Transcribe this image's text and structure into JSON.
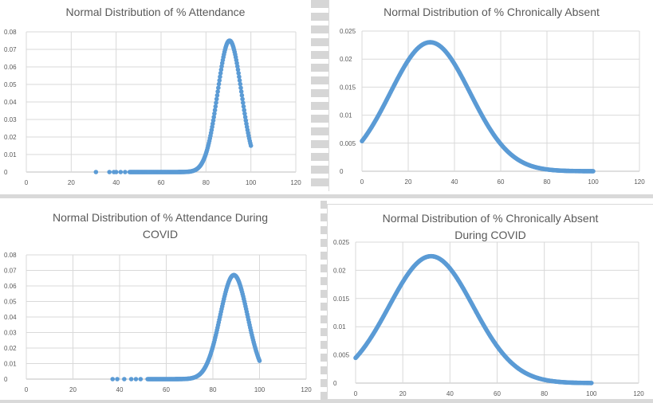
{
  "charts": [
    {
      "title_lines": [
        "Normal Distribution of % Attendance"
      ]
    },
    {
      "title_lines": [
        "Normal Distribution of % Chronically Absent"
      ]
    },
    {
      "title_lines": [
        "Normal Distribution of % Attendance During",
        "COVID"
      ]
    },
    {
      "title_lines": [
        "Normal Distribution of % Chronically Absent",
        "During COVID"
      ]
    }
  ],
  "colors": {
    "series": "#5b9bd5",
    "grid": "#d9d9d9",
    "text": "#595959"
  },
  "chart_data": [
    {
      "type": "scatter",
      "title": "Normal Distribution of % Attendance",
      "xlim": [
        0,
        120
      ],
      "ylim": [
        0,
        0.08
      ],
      "x_ticks": [
        "0",
        "20",
        "40",
        "60",
        "80",
        "100",
        "120"
      ],
      "y_ticks": [
        "0",
        "0.01",
        "0.02",
        "0.03",
        "0.04",
        "0.05",
        "0.06",
        "0.07",
        "0.08"
      ],
      "grid": true,
      "distribution": {
        "mean": 90.5,
        "sd": 5.3,
        "x_min": 46,
        "x_max": 100
      },
      "outlier_x": [
        31,
        37,
        39,
        40,
        42,
        44
      ],
      "peak_y": 0.075,
      "end_y": 0.018
    },
    {
      "type": "scatter",
      "title": "Normal Distribution of % Chronically Absent",
      "xlim": [
        0,
        120
      ],
      "ylim": [
        0,
        0.025
      ],
      "x_ticks": [
        "0",
        "20",
        "40",
        "60",
        "80",
        "100",
        "120"
      ],
      "y_ticks": [
        "0",
        "0.005",
        "0.01",
        "0.015",
        "0.02",
        "0.025"
      ],
      "grid": true,
      "distribution": {
        "mean": 29.5,
        "sd": 17.3,
        "x_min": 0,
        "x_max": 100
      },
      "outlier_x": [],
      "peak_y": 0.023,
      "end_y": 0
    },
    {
      "type": "scatter",
      "title": "Normal Distribution of % Attendance During COVID",
      "xlim": [
        0,
        120
      ],
      "ylim": [
        0,
        0.08
      ],
      "x_ticks": [
        "0",
        "20",
        "40",
        "60",
        "80",
        "100",
        "120"
      ],
      "y_ticks": [
        "0",
        "0.01",
        "0.02",
        "0.03",
        "0.04",
        "0.05",
        "0.06",
        "0.07",
        "0.08"
      ],
      "grid": true,
      "distribution": {
        "mean": 89,
        "sd": 5.9,
        "x_min": 52,
        "x_max": 100
      },
      "outlier_x": [
        37,
        39,
        42,
        45,
        47,
        49
      ],
      "peak_y": 0.067,
      "end_y": 0.015
    },
    {
      "type": "scatter",
      "title": "Normal Distribution of % Chronically Absent During COVID",
      "xlim": [
        0,
        120
      ],
      "ylim": [
        0,
        0.025
      ],
      "x_ticks": [
        "0",
        "20",
        "40",
        "60",
        "80",
        "100",
        "120"
      ],
      "y_ticks": [
        "0",
        "0.005",
        "0.01",
        "0.015",
        "0.02",
        "0.025"
      ],
      "grid": true,
      "distribution": {
        "mean": 32,
        "sd": 17.8,
        "x_min": 0,
        "x_max": 100
      },
      "outlier_x": [],
      "peak_y": 0.0225,
      "end_y": 0
    }
  ]
}
